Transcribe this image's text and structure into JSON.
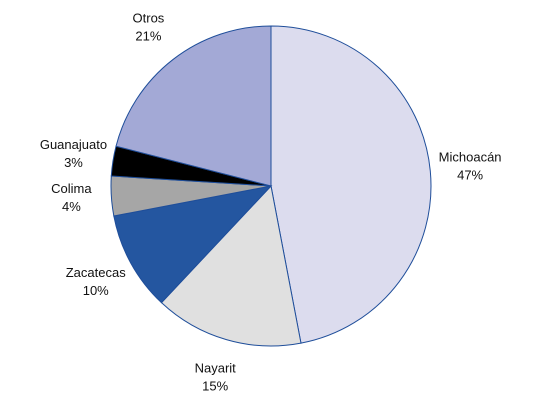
{
  "chart_data": {
    "type": "pie",
    "categories": [
      "Michoacán",
      "Nayarit",
      "Zacatecas",
      "Colima",
      "Guanajuato",
      "Otros"
    ],
    "values": [
      47,
      15,
      10,
      4,
      3,
      21
    ],
    "value_labels": [
      "47%",
      "15%",
      "10%",
      "4%",
      "3%",
      "21%"
    ],
    "colors": [
      "#dcdcee",
      "#e0e0e0",
      "#2456a0",
      "#a6a6a6",
      "#000000",
      "#a3a9d6"
    ]
  }
}
